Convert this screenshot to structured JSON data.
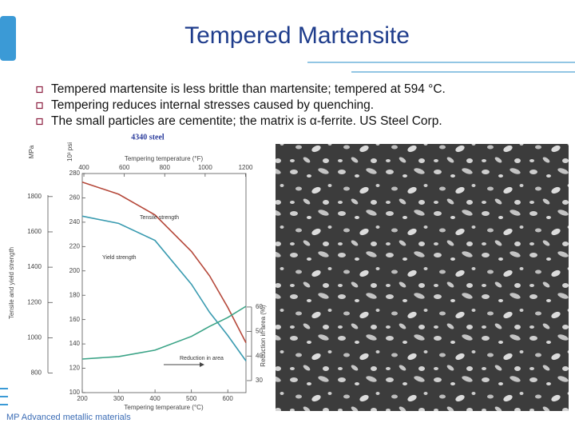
{
  "slide": {
    "title": "Tempered Martensite",
    "bullets": [
      "Tempered martensite is less brittle than martensite; tempered at 594 °C.",
      "Tempering reduces internal stresses caused by quenching.",
      "The small particles are cementite; the matrix is α-ferrite. US Steel Corp."
    ],
    "footer": "MP Advanced metallic materials"
  },
  "chart_data": {
    "type": "line",
    "title": "4340 steel",
    "x": [
      200,
      300,
      400,
      500,
      550,
      600,
      650
    ],
    "xlabel": "Tempering temperature (°C)",
    "xlim": [
      200,
      650
    ],
    "xticks": [
      200,
      300,
      400,
      500,
      600
    ],
    "x_top": {
      "label": "Tempering temperature (°F)",
      "lim": [
        392,
        1202
      ],
      "ticks": [
        400,
        600,
        800,
        1000,
        1200
      ]
    },
    "ylabel": "Tensile and yield strength",
    "y_unit": "10³ psi",
    "ylim": [
      100,
      280
    ],
    "yticks": [
      100,
      120,
      140,
      160,
      180,
      200,
      220,
      240,
      260,
      280
    ],
    "y_outer": {
      "unit": "MPa",
      "lim": [
        689.5,
        1930.5
      ],
      "ticks": [
        800,
        1000,
        1200,
        1400,
        1600,
        1800
      ]
    },
    "y2label": "Reduction in area (%)",
    "y2lim": [
      25.1,
      114.4
    ],
    "y2ticks": [
      30,
      40,
      50,
      60
    ],
    "series": [
      {
        "name": "Tensile strength",
        "color": "#b5483a",
        "values": [
          273,
          263,
          246,
          216,
          196,
          170,
          141
        ]
      },
      {
        "name": "Yield strength",
        "color": "#3a9bb0",
        "values": [
          245,
          239,
          225,
          189,
          166,
          147,
          126
        ]
      },
      {
        "name": "Reduction in area",
        "color": "#3aa386",
        "axis": "y2",
        "values": [
          38.8,
          39.8,
          42.4,
          48,
          52.1,
          55.7,
          60.3
        ]
      }
    ]
  }
}
